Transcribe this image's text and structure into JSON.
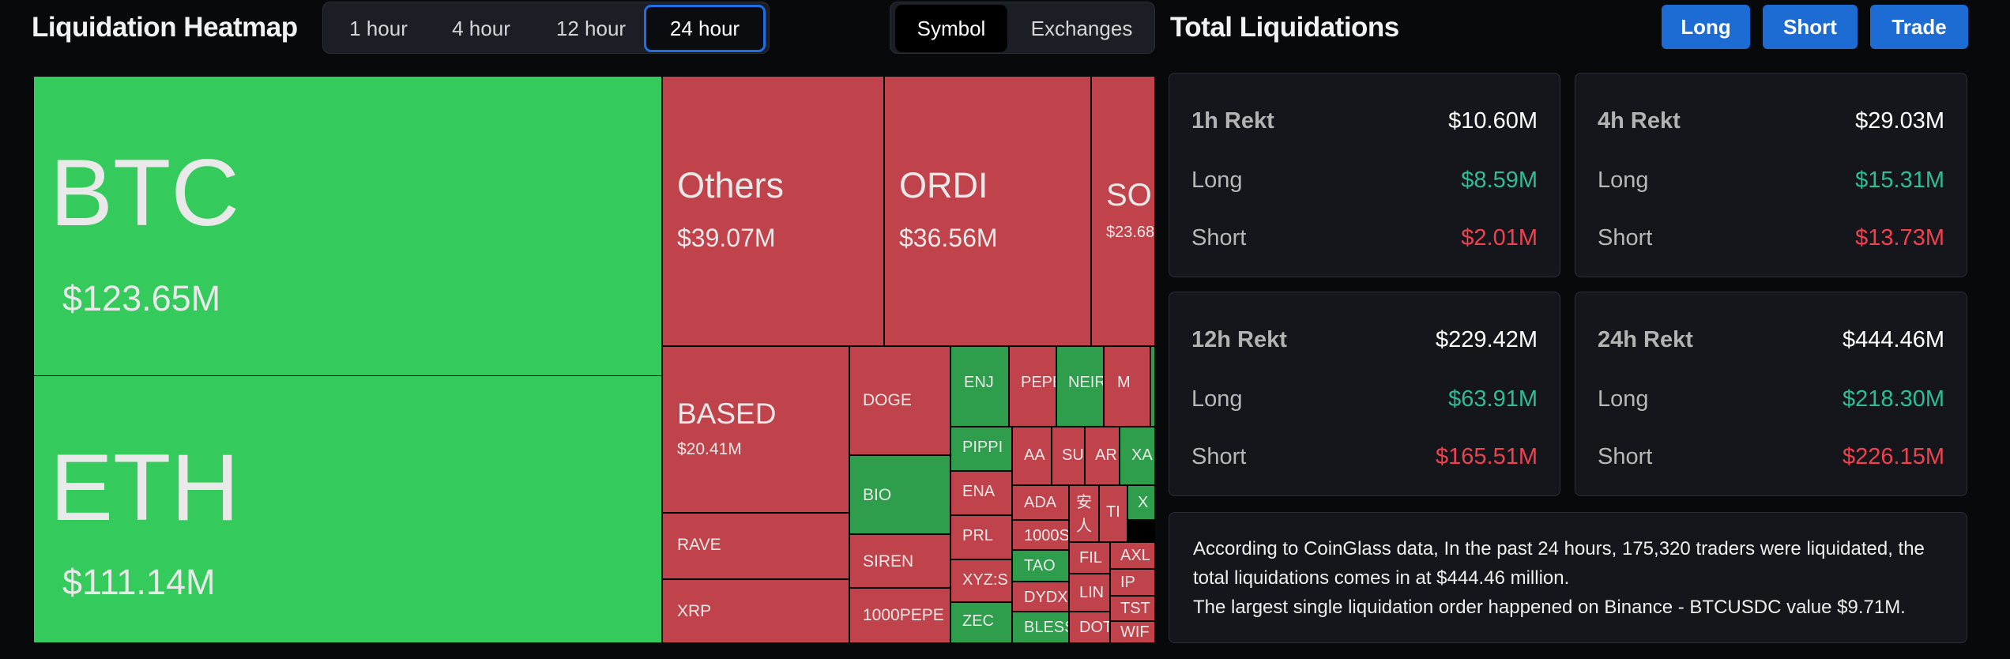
{
  "header": {
    "title": "Liquidation Heatmap",
    "timeframes": [
      "1 hour",
      "4 hour",
      "12 hour",
      "24 hour"
    ],
    "active_timeframe": "24 hour",
    "tabs": [
      "Symbol",
      "Exchanges"
    ],
    "active_tab": "Symbol"
  },
  "treemap": {
    "cells": [
      {
        "sym": "BTC",
        "val": "$123.65M",
        "color": "green"
      },
      {
        "sym": "ETH",
        "val": "$111.14M",
        "color": "green"
      },
      {
        "sym": "Others",
        "val": "$39.07M",
        "color": "red"
      },
      {
        "sym": "ORDI",
        "val": "$36.56M",
        "color": "red"
      },
      {
        "sym": "SOL",
        "val": "$23.68",
        "color": "red"
      },
      {
        "sym": "BASED",
        "val": "$20.41M",
        "color": "red"
      },
      {
        "sym": "RAVE",
        "color": "red"
      },
      {
        "sym": "XRP",
        "color": "red"
      },
      {
        "sym": "DOGE",
        "color": "red"
      },
      {
        "sym": "BIO",
        "color": "green"
      },
      {
        "sym": "SIREN",
        "color": "red"
      },
      {
        "sym": "1000PEPE",
        "color": "red"
      },
      {
        "sym": "ENJ",
        "color": "green"
      },
      {
        "sym": "PEPE",
        "color": "red"
      },
      {
        "sym": "NEIR",
        "color": "green"
      },
      {
        "sym": "M",
        "color": "red"
      },
      {
        "sym": "PIPPI",
        "color": "green"
      },
      {
        "sym": "ENA",
        "color": "red"
      },
      {
        "sym": "PRL",
        "color": "red"
      },
      {
        "sym": "XYZ:S",
        "color": "red"
      },
      {
        "sym": "ZEC",
        "color": "green"
      },
      {
        "sym": "AA",
        "color": "red"
      },
      {
        "sym": "SU",
        "color": "red"
      },
      {
        "sym": "AR",
        "color": "red"
      },
      {
        "sym": "XA",
        "color": "green"
      },
      {
        "sym": "ADA",
        "color": "red"
      },
      {
        "sym": "安人",
        "color": "red"
      },
      {
        "sym": "TI",
        "color": "red"
      },
      {
        "sym": "X",
        "color": "green"
      },
      {
        "sym": "1000S",
        "color": "red"
      },
      {
        "sym": "TAO",
        "color": "green"
      },
      {
        "sym": "DYDX",
        "color": "red"
      },
      {
        "sym": "BLESS",
        "color": "green"
      },
      {
        "sym": "FIL",
        "color": "red"
      },
      {
        "sym": "LIN",
        "color": "red"
      },
      {
        "sym": "DOT",
        "color": "red"
      },
      {
        "sym": "AXL",
        "color": "red"
      },
      {
        "sym": "IP",
        "color": "red"
      },
      {
        "sym": "TST",
        "color": "red"
      },
      {
        "sym": "WIF",
        "color": "red"
      }
    ]
  },
  "right": {
    "title": "Total Liquidations",
    "buttons": {
      "long": "Long",
      "short": "Short",
      "trade": "Trade"
    },
    "long_label": "Long",
    "short_label": "Short",
    "cards": [
      {
        "title": "1h Rekt",
        "total": "$10.60M",
        "long": "$8.59M",
        "short": "$2.01M"
      },
      {
        "title": "4h Rekt",
        "total": "$29.03M",
        "long": "$15.31M",
        "short": "$13.73M"
      },
      {
        "title": "12h Rekt",
        "total": "$229.42M",
        "long": "$63.91M",
        "short": "$165.51M"
      },
      {
        "title": "24h Rekt",
        "total": "$444.46M",
        "long": "$218.30M",
        "short": "$226.15M"
      }
    ],
    "summary": {
      "line1": "According to CoinGlass data, In the past 24 hours, 175,320 traders were liquidated, the total liquidations comes in at $444.46 million.",
      "line2": "The largest single liquidation order happened on Binance - BTCUSDC value $9.71M."
    }
  },
  "colors": {
    "green": "#34cb5c",
    "green_dark": "#2e9e4c",
    "red": "#c0424a",
    "accent": "#1c6cd4",
    "long_text": "#2ebd95",
    "short_text": "#f0414f"
  }
}
